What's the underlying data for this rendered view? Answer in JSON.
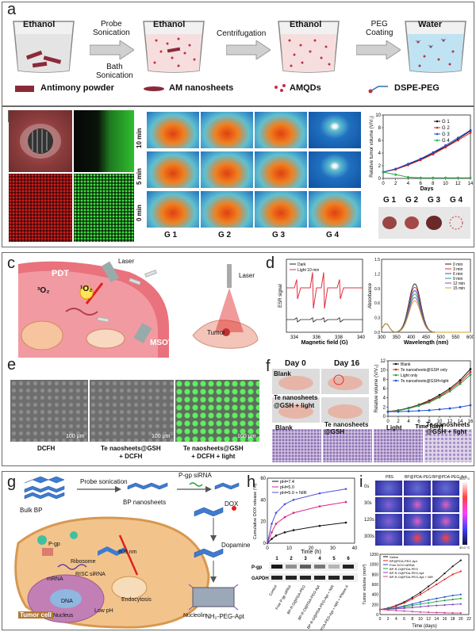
{
  "panel_a": {
    "label": "a",
    "beakers": [
      {
        "title": "Ethanol"
      },
      {
        "title": "Ethanol"
      },
      {
        "title": "Ethanol"
      },
      {
        "title": "Water"
      }
    ],
    "steps": [
      {
        "top": "Probe\nSonication",
        "bottom": "Bath\nSonication"
      },
      {
        "top": "Centrifugation",
        "bottom": ""
      },
      {
        "top": "PEG\nCoating",
        "bottom": ""
      }
    ],
    "legend": [
      "Antimony powder",
      "AM nanosheets",
      "AMQDs",
      "DSPE-PEG"
    ],
    "accent": "#2f6fb0"
  },
  "panel_b": {
    "label": "b",
    "time_rows": [
      "10 min",
      "5 min",
      "0 min"
    ],
    "groups": [
      "G 1",
      "G 2",
      "G 3",
      "G 4"
    ],
    "photo_groups": [
      "G 1",
      "G 2",
      "G 3",
      "G 4"
    ]
  },
  "chart_b": {
    "type": "line",
    "ylabel": "Relative tumor volume (V/V₀)",
    "xlabel": "Days",
    "x": [
      0,
      2,
      4,
      6,
      8,
      10,
      12,
      14
    ],
    "ylim": [
      0,
      10
    ],
    "yticks": [
      0,
      2,
      4,
      6,
      8,
      10
    ],
    "xticks": [
      0,
      2,
      4,
      6,
      8,
      10,
      12,
      14
    ],
    "series": [
      {
        "name": "G 1",
        "color": "#111111",
        "values": [
          1,
          1.5,
          2.2,
          3.0,
          4.0,
          5.0,
          6.2,
          7.5
        ]
      },
      {
        "name": "G 2",
        "color": "#e02020",
        "values": [
          1,
          1.4,
          2.1,
          2.9,
          3.8,
          4.9,
          6.0,
          7.2
        ]
      },
      {
        "name": "G 3",
        "color": "#2050d0",
        "values": [
          1,
          1.5,
          2.3,
          3.1,
          4.1,
          5.2,
          6.4,
          7.6
        ]
      },
      {
        "name": "G 4",
        "color": "#20b040",
        "values": [
          1,
          0.6,
          0.2,
          0.1,
          0.1,
          0.1,
          0.1,
          0.1
        ]
      }
    ]
  },
  "panel_c": {
    "label": "c",
    "pdt": "PDT",
    "o2_singlet": "¹O₂",
    "o2": "³O₂",
    "msot": "MSOT",
    "laser1": "Laser",
    "laser2": "Laser",
    "tumor": "Tumor"
  },
  "panel_d": {
    "label": "d",
    "esr": {
      "ylabel": "ESR signal",
      "xlabel": "Magnetic field (G)",
      "xticks": [
        "334",
        "336",
        "338",
        "340"
      ],
      "legend": [
        "Dark",
        "Light 10 min"
      ]
    },
    "abs": {
      "ylabel": "Absorbance",
      "xlabel": "Wavelength (nm)",
      "xticks": [
        "300",
        "350",
        "400",
        "450",
        "500",
        "550",
        "600"
      ],
      "yticks": [
        "0.0",
        "0.3",
        "0.6",
        "0.9",
        "1.2",
        "1.5"
      ],
      "legend": [
        "0 min",
        "3 min",
        "6 min",
        "9 min",
        "12 min",
        "15 min"
      ],
      "colors": [
        "#222222",
        "#e03030",
        "#3050d0",
        "#20a060",
        "#a040c0",
        "#d0a020"
      ]
    }
  },
  "panel_e": {
    "label": "e",
    "captions": [
      "DCFH",
      "Te naosheets@GSH\n+ DCFH",
      "Te naosheets@GSH\n+ DCFH + light"
    ],
    "scale": "100 μm"
  },
  "panel_f": {
    "label": "f",
    "day0": "Day 0",
    "day16": "Day 16",
    "mice_labels": [
      "Blank",
      "Te nanosheets\n@GSH + light"
    ],
    "histology": [
      "Blank",
      "Te nanosheets\n@GSH",
      "Light",
      "Te nanosheets\n@GSH + light"
    ]
  },
  "chart_f": {
    "type": "line",
    "ylabel": "Relative volume (V/V₀)",
    "xlabel": "Time (day)",
    "x": [
      0,
      2,
      4,
      6,
      8,
      10,
      12,
      14,
      16
    ],
    "xticks": [
      0,
      2,
      4,
      6,
      8,
      10,
      12,
      14,
      16
    ],
    "yticks": [
      0,
      2,
      4,
      6,
      8,
      10,
      12
    ],
    "ylim": [
      0,
      12
    ],
    "series": [
      {
        "name": "Blank",
        "color": "#111111",
        "values": [
          1,
          1.3,
          1.8,
          2.5,
          3.4,
          4.6,
          6.0,
          7.8,
          10.2
        ]
      },
      {
        "name": "Te nanosheets@GSH only",
        "color": "#e02020",
        "values": [
          1,
          1.3,
          1.7,
          2.4,
          3.2,
          4.3,
          5.7,
          7.4,
          9.6
        ]
      },
      {
        "name": "Light only",
        "color": "#20a040",
        "values": [
          1,
          1.2,
          1.7,
          2.3,
          3.0,
          4.1,
          5.4,
          7.0,
          9.0
        ]
      },
      {
        "name": "Te nanosheets@GSH+light",
        "color": "#2050d0",
        "values": [
          1,
          1.0,
          1.1,
          1.2,
          1.3,
          1.5,
          1.7,
          2.0,
          2.4
        ]
      }
    ]
  },
  "panel_g": {
    "label": "g",
    "bulk": "Bulk BP",
    "probe": "Probe sonication",
    "bp_ns": "BP nanosheets",
    "sirna_label": "P-gp siRNA",
    "dox": "DOX",
    "dopamine": "Dopamine",
    "nh2": "NH₂-PEG-Apt",
    "cell_labels": [
      "Tumor cell",
      "Ribosome",
      "mRNA",
      "siRNA",
      "DNA",
      "Nucleus",
      "Endocytosis",
      "Low pH",
      "Nucleolin",
      "808 nm",
      "P-gp",
      "RISC"
    ]
  },
  "panel_h": {
    "label": "h",
    "ylabel": "Cumulative DOX release (%)",
    "xlabel": "Time (h)",
    "legend": [
      "pH=7.4",
      "pH=5.0",
      "pH=5.0 + NIR"
    ],
    "colors": [
      "#111111",
      "#e02080",
      "#5050e0"
    ],
    "xticks": [
      "0",
      "10",
      "20",
      "30",
      "40"
    ],
    "yticks": [
      "0",
      "20",
      "40",
      "60"
    ],
    "wb_lanes": [
      "1",
      "2",
      "3",
      "4",
      "5",
      "6"
    ],
    "wb_rows": [
      "P-gp",
      "GAPDH"
    ],
    "wb_groups": [
      "Control",
      "Free P-gp siRNA",
      "BP-R-O@PDA-PEG",
      "BP-R-O@PDA-PEG-Apt",
      "BP-R-O@PDA-PEG-Apt + NIR",
      "BP-R-O@PDA-PEG-Apt + NIR + RNase A"
    ]
  },
  "panel_i": {
    "label": "i",
    "cols": [
      "PBS",
      "BP@PDA-PEG",
      "BP@PDA-PEG-Apt"
    ],
    "rows": [
      "0s",
      "30s",
      "120s",
      "300s"
    ],
    "scale_top": "56.0 °C",
    "scale_bottom": "30.0 °C",
    "ylabel": "Tumor volume (mm³)",
    "xlabel": "Time (days)",
    "xticks": [
      "0",
      "2",
      "4",
      "6",
      "8",
      "10",
      "12",
      "14",
      "16",
      "18",
      "20",
      "22"
    ],
    "yticks": [
      "0",
      "200",
      "400",
      "600",
      "800",
      "1000",
      "1200"
    ],
    "legend": [
      "Saline",
      "BP@PDA-PEG-Apt",
      "Free DOX+siRNA",
      "BP-R-O@PDA-PEG",
      "BP-R-O@PDA-PEG-Apt",
      "BP-R-O@PDA-PEG-Apt + NIR"
    ],
    "colors": [
      "#111111",
      "#e02020",
      "#2050d0",
      "#20a040",
      "#8040c0",
      "#d04090"
    ]
  }
}
